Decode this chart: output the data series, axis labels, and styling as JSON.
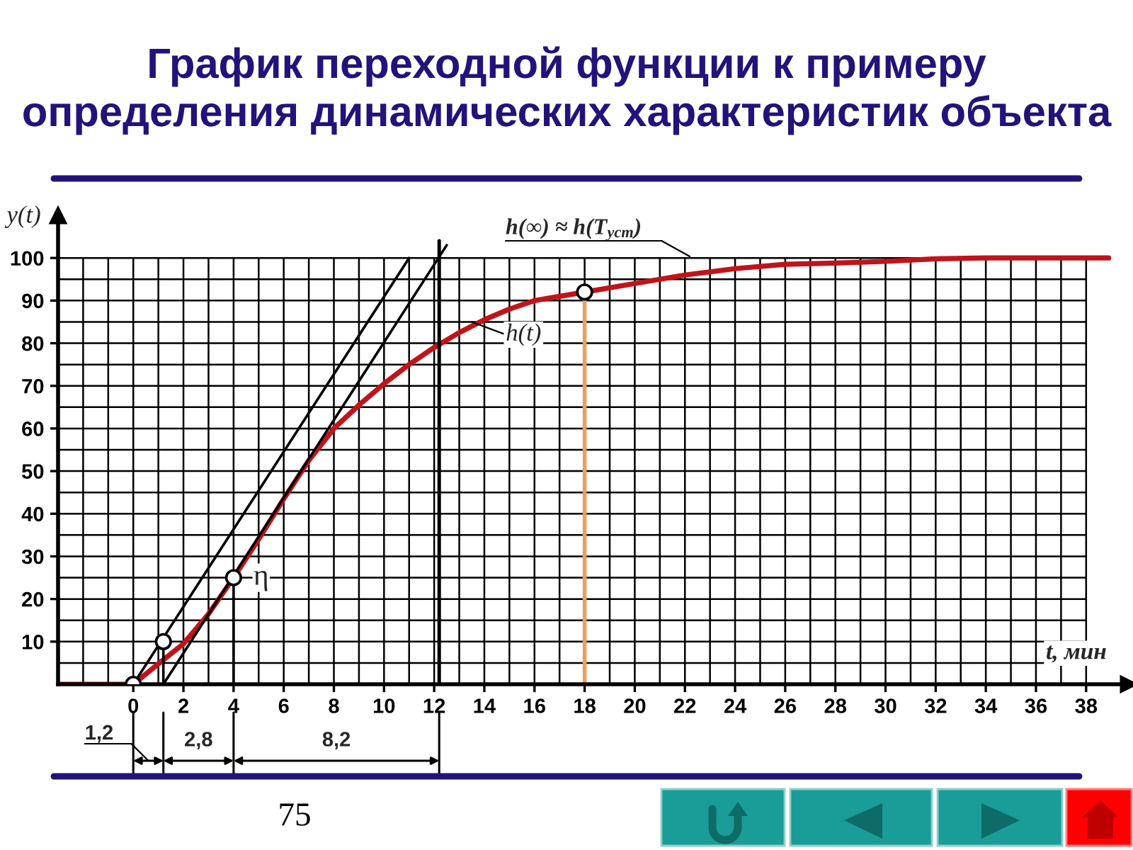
{
  "chart_data": {
    "type": "line",
    "title": "График переходной функции к примеру\nопределения динамических характеристик объекта",
    "xlabel": "t, мин",
    "ylabel": "y(t)",
    "xlim": [
      -3,
      39.7
    ],
    "ylim": [
      0,
      110
    ],
    "xticks": [
      {
        "value": -2,
        "label": null
      },
      {
        "value": -1,
        "label": null
      },
      0,
      {
        "value": 1,
        "label": null
      },
      2,
      {
        "value": 3,
        "label": null
      },
      4,
      {
        "value": 5,
        "label": null
      },
      6,
      {
        "value": 7,
        "label": null
      },
      8,
      {
        "value": 9,
        "label": null
      },
      10,
      {
        "value": 11,
        "label": null
      },
      12,
      {
        "value": 13,
        "label": null
      },
      14,
      {
        "value": 15,
        "label": null
      },
      16,
      {
        "value": 17,
        "label": null
      },
      18,
      {
        "value": 19,
        "label": null
      },
      20,
      {
        "value": 21,
        "label": null
      },
      22,
      {
        "value": 23,
        "label": null
      },
      24,
      {
        "value": 25,
        "label": null
      },
      26,
      {
        "value": 27,
        "label": null
      },
      28,
      {
        "value": 29,
        "label": null
      },
      30,
      {
        "value": 31,
        "label": null
      },
      32,
      {
        "value": 33,
        "label": null
      },
      34,
      {
        "value": 35,
        "label": null
      },
      36,
      {
        "value": 37,
        "label": null
      },
      38
    ],
    "yticks": [
      {
        "value": 0,
        "label": null
      },
      {
        "value": 5,
        "label": null
      },
      10,
      {
        "value": 15,
        "label": null
      },
      20,
      {
        "value": 25,
        "label": null
      },
      30,
      {
        "value": 35,
        "label": null
      },
      40,
      {
        "value": 45,
        "label": null
      },
      50,
      {
        "value": 55,
        "label": null
      },
      60,
      {
        "value": 65,
        "label": null
      },
      70,
      {
        "value": 75,
        "label": null
      },
      80,
      {
        "value": 85,
        "label": null
      },
      90,
      {
        "value": 95,
        "label": null
      },
      100
    ],
    "grid": true,
    "series": [
      {
        "color": "#c0141a",
        "x": [
          -3,
          0,
          1,
          2,
          3,
          4,
          5,
          6,
          7,
          8,
          9,
          10,
          11,
          12,
          13,
          14,
          15,
          16,
          17,
          18,
          20,
          22,
          24,
          26,
          28,
          30,
          32,
          34,
          36,
          38.9
        ],
        "values": [
          0,
          0,
          4.8,
          9.5,
          16.5,
          25,
          34,
          43.5,
          52.5,
          60,
          65.5,
          70.5,
          75,
          79,
          82.5,
          85.5,
          88,
          90,
          91,
          92,
          94,
          96,
          97.5,
          98.5,
          98.8,
          99.2,
          99.8,
          100,
          100,
          100
        ]
      },
      {
        "type": "line",
        "color": "#000000",
        "x": [
          0,
          11
        ],
        "values": [
          0,
          100
        ]
      },
      {
        "type": "line",
        "color": "#000000",
        "x": [
          1.2,
          12.5
        ],
        "values": [
          0,
          103
        ]
      },
      {
        "type": "line",
        "color": "#000000",
        "x": [
          1.2,
          1.2
        ],
        "values": [
          0,
          10
        ]
      },
      {
        "type": "line",
        "color": "#000000",
        "x": [
          4,
          4
        ],
        "values": [
          0,
          25
        ]
      },
      {
        "type": "line",
        "color": "#000000",
        "x": [
          12.2,
          12.2
        ],
        "values": [
          0,
          104
        ]
      },
      {
        "type": "line",
        "color": "#e9a060",
        "x": [
          18,
          18
        ],
        "values": [
          0,
          92
        ]
      },
      {
        "type": "scatter",
        "color": "#000000",
        "marker": "circle",
        "x": [
          0,
          1.2,
          4,
          18
        ],
        "values": [
          0,
          10,
          25,
          92
        ]
      }
    ],
    "annotations": [
      "h(∞) ≈ h(T$_{уст}$)",
      {
        "text": "h(t)",
        "x": 13.5,
        "y": 85
      },
      {
        "text": "η",
        "x": 4,
        "y": 25
      },
      "1,2",
      "2,8",
      "8,2",
      "75"
    ]
  }
}
